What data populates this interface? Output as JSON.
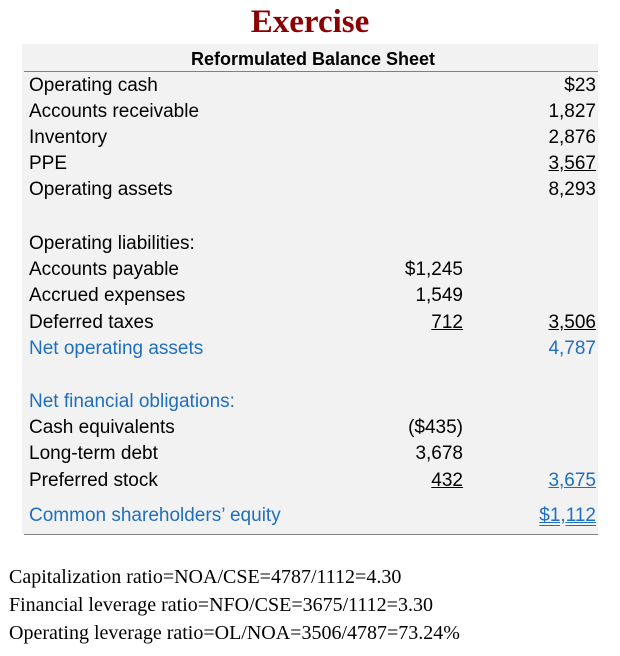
{
  "title": "Exercise",
  "subtitle": "Reformulated Balance Sheet",
  "rows": {
    "operating_cash": {
      "label": "Operating cash",
      "right": "$23"
    },
    "accounts_receivable": {
      "label": "Accounts receivable",
      "right": "1,827"
    },
    "inventory": {
      "label": "Inventory",
      "right": "2,876"
    },
    "ppe": {
      "label": "PPE",
      "right": "3,567"
    },
    "operating_assets": {
      "label": "Operating assets",
      "right": "8,293"
    },
    "operating_liabilities": {
      "label": "Operating liabilities:"
    },
    "accounts_payable": {
      "label": "Accounts payable",
      "mid": "$1,245"
    },
    "accrued_expenses": {
      "label": "Accrued expenses",
      "mid": "1,549"
    },
    "deferred_taxes": {
      "label": "Deferred taxes",
      "mid": "712",
      "right": "3,506"
    },
    "net_operating_assets": {
      "label": "Net operating assets",
      "right": "4,787"
    },
    "net_financial_obligations": {
      "label": "Net financial obligations:"
    },
    "cash_equivalents": {
      "label": "Cash equivalents",
      "mid": "($435)"
    },
    "long_term_debt": {
      "label": "Long-term debt",
      "mid": "3,678"
    },
    "preferred_stock": {
      "label": "Preferred stock",
      "mid": "432",
      "right": "3,675"
    },
    "common_equity": {
      "label": "Common shareholders’ equity",
      "right": "$1,112"
    }
  },
  "footer": {
    "capitalization": "Capitalization ratio=NOA/CSE=4787/1112=4.30",
    "financial_leverage": "Financial leverage ratio=NFO/CSE=3675/1112=3.30",
    "operating_leverage": "Operating leverage ratio=OL/NOA=3506/4787=73.24%"
  },
  "colors": {
    "title": "#8b0000",
    "accent_blue": "#1f6fbf",
    "panel_bg": "#f2f2f2"
  }
}
